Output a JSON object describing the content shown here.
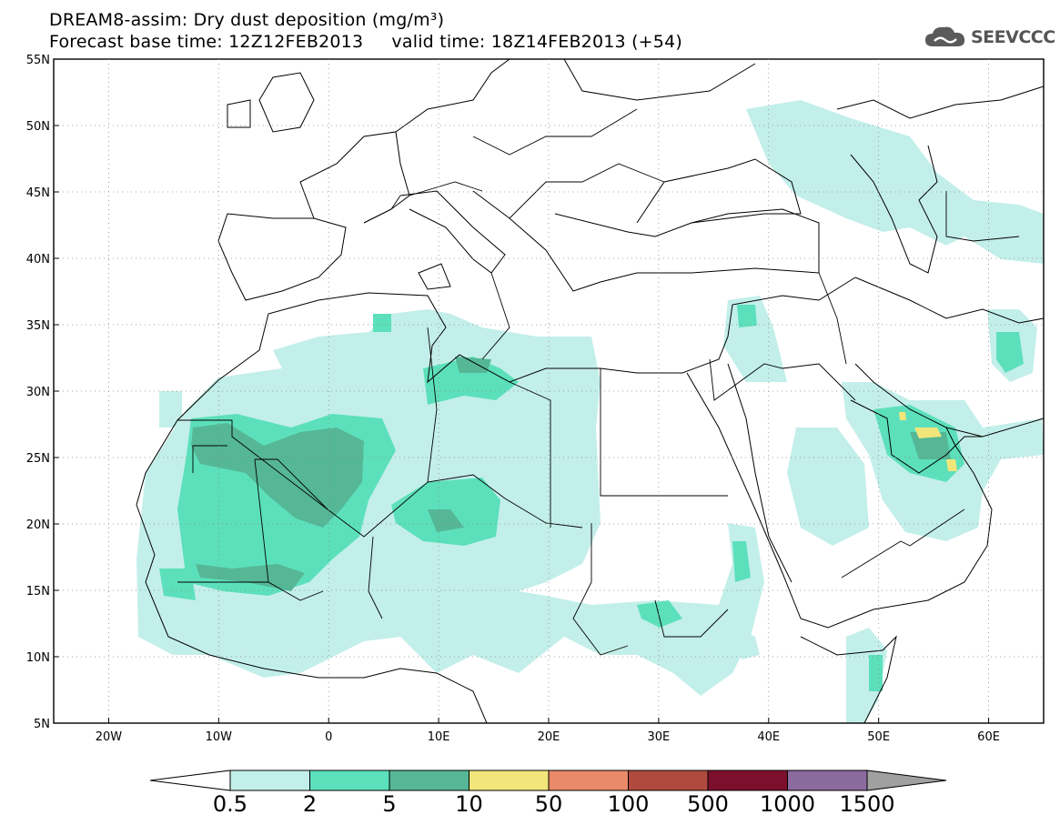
{
  "header": {
    "title_line1": "DREAM8-assim: Dry dust deposition (mg/m³)",
    "title_line2": "Forecast base time: 12Z12FEB2013     valid time: 18Z14FEB2013 (+54)",
    "logo_text": "SEEVCCC"
  },
  "map": {
    "lon_range": [
      -25,
      65
    ],
    "lat_range": [
      5,
      55
    ],
    "lon_ticks": [
      {
        "value": -20,
        "label": "20W"
      },
      {
        "value": -10,
        "label": "10W"
      },
      {
        "value": 0,
        "label": "0"
      },
      {
        "value": 10,
        "label": "10E"
      },
      {
        "value": 20,
        "label": "20E"
      },
      {
        "value": 30,
        "label": "30E"
      },
      {
        "value": 40,
        "label": "40E"
      },
      {
        "value": 50,
        "label": "50E"
      },
      {
        "value": 60,
        "label": "60E"
      }
    ],
    "lat_ticks": [
      {
        "value": 5,
        "label": "5N"
      },
      {
        "value": 10,
        "label": "10N"
      },
      {
        "value": 15,
        "label": "15N"
      },
      {
        "value": 20,
        "label": "20N"
      },
      {
        "value": 25,
        "label": "25N"
      },
      {
        "value": 30,
        "label": "30N"
      },
      {
        "value": 35,
        "label": "35N"
      },
      {
        "value": 40,
        "label": "40N"
      },
      {
        "value": 45,
        "label": "45N"
      },
      {
        "value": 50,
        "label": "50N"
      },
      {
        "value": 55,
        "label": "55N"
      }
    ],
    "grid": "dotted"
  },
  "colorbar": {
    "colors": [
      "#c3efea",
      "#5ce0bb",
      "#55b796",
      "#f2e67a",
      "#ea8a68",
      "#b04a3e",
      "#7c0f2c",
      "#8b6a9e"
    ],
    "end_colors": {
      "low": "#ffffff",
      "high": "#a0a0a0"
    },
    "labels": [
      "0.5",
      "2",
      "5",
      "10",
      "50",
      "100",
      "500",
      "1000",
      "1500"
    ]
  }
}
